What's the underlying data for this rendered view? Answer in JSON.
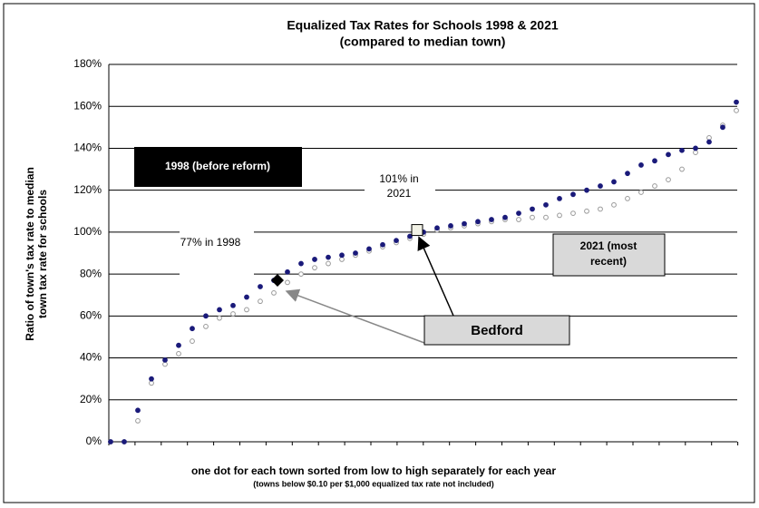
{
  "chart_data": {
    "type": "scatter",
    "title": "Equalized Tax Rates for Schools 1998 & 2021",
    "subtitle": "(compared to median town)",
    "y_label": [
      "Ratio of town's tax rate to median",
      "town tax rate for schools"
    ],
    "x_label": "one dot for each town sorted from low to high separately for each year",
    "x_note": "(towns below $0.10 per $1,000 equalized tax rate not included)",
    "ylim": [
      0,
      180
    ],
    "yticks": [
      {
        "value": 0,
        "label": "0%"
      },
      {
        "value": 20,
        "label": "20%"
      },
      {
        "value": 40,
        "label": "40%"
      },
      {
        "value": 60,
        "label": "60%"
      },
      {
        "value": 80,
        "label": "80%"
      },
      {
        "value": 100,
        "label": "100%"
      },
      {
        "value": 120,
        "label": "120%"
      },
      {
        "value": 140,
        "label": "140%"
      },
      {
        "value": 160,
        "label": "160%"
      },
      {
        "value": 180,
        "label": "180%"
      }
    ],
    "grid": true,
    "series": [
      {
        "name": "2021 (most recent)",
        "color": "#999999",
        "values": [
          0,
          0,
          10,
          28,
          37,
          42,
          48,
          55,
          59,
          61,
          63,
          67,
          71,
          76,
          80,
          83,
          85,
          87,
          89,
          91,
          93,
          95,
          97,
          99,
          101,
          102,
          103,
          104,
          105,
          106,
          106,
          107,
          107,
          108,
          109,
          110,
          111,
          113,
          116,
          119,
          122,
          125,
          130,
          138,
          145,
          151,
          158
        ]
      },
      {
        "name": "1998 (before reform)",
        "color": "#1a1a7a",
        "values": [
          0,
          0,
          15,
          30,
          39,
          46,
          54,
          60,
          63,
          65,
          69,
          74,
          77,
          81,
          85,
          87,
          88,
          89,
          90,
          92,
          94,
          96,
          98,
          100,
          102,
          103,
          104,
          105,
          106,
          107,
          109,
          111,
          113,
          116,
          118,
          120,
          122,
          124,
          128,
          132,
          134,
          137,
          139,
          140,
          143,
          150,
          162
        ]
      }
    ],
    "highlight": {
      "label": "Bedford",
      "values": [
        77,
        101
      ],
      "value_labels": [
        "77% in 1998",
        "101% in 2021"
      ]
    }
  }
}
